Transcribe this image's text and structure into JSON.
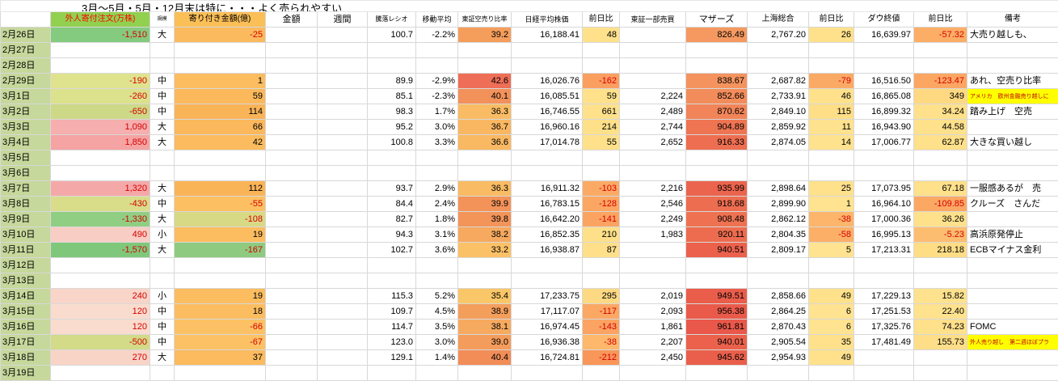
{
  "title": "3月～5月・5月・12月末は特に・・・よく売られやすい",
  "headers": [
    {
      "label": ""
    },
    {
      "label": "外人寄付注文(万株)",
      "bg": "#92d050",
      "fg": "#ff0000",
      "size": 10
    },
    {
      "label": "規模",
      "size": 6
    },
    {
      "label": "寄り付き金額(億)",
      "bg": "#fbbf58",
      "size": 10
    },
    {
      "label": "金額",
      "size": 11
    },
    {
      "label": "週間",
      "size": 11
    },
    {
      "label": "騰落レシオ",
      "size": 8
    },
    {
      "label": "移動平均",
      "size": 9
    },
    {
      "label": "東証空売り比率",
      "size": 8
    },
    {
      "label": "日経平均株価",
      "size": 9
    },
    {
      "label": "前日比",
      "size": 10
    },
    {
      "label": "東証一部売買",
      "size": 9
    },
    {
      "label": "マザーズ",
      "size": 11
    },
    {
      "label": "上海総合",
      "size": 10
    },
    {
      "label": "前日比",
      "size": 10
    },
    {
      "label": "ダウ終値",
      "size": 10
    },
    {
      "label": "前日比",
      "size": 10
    },
    {
      "label": "備考",
      "size": 10
    }
  ],
  "rows": [
    {
      "date": "2月26日",
      "cells": [
        {
          "v": "-1,510",
          "bg": "#85cb7f",
          "fg": "#d60000"
        },
        {
          "v": "大"
        },
        {
          "v": "-25",
          "bg": "#fcba5e",
          "fg": "#d60000"
        },
        {},
        {},
        {
          "v": "100.7"
        },
        {
          "v": "-2.2%"
        },
        {
          "v": "39.2",
          "bg": "#f59e5c"
        },
        {
          "v": "16,188.41"
        },
        {
          "v": "48",
          "bg": "#ffe18c"
        },
        {},
        {
          "v": "826.49",
          "bg": "#f59960"
        },
        {
          "v": "2,767.20"
        },
        {
          "v": "26",
          "bg": "#ffe18c"
        },
        {
          "v": "16,639.97"
        },
        {
          "v": "-57.32",
          "bg": "#fcae66",
          "fg": "#d60000"
        },
        {
          "v": "大売り越しも、"
        }
      ]
    },
    {
      "date": "2月27日",
      "cells": []
    },
    {
      "date": "2月28日",
      "cells": []
    },
    {
      "date": "2月29日",
      "cells": [
        {
          "v": "-190",
          "bg": "#e0e38e",
          "fg": "#d60000"
        },
        {
          "v": "中"
        },
        {
          "v": "1",
          "bg": "#fcbd60"
        },
        {},
        {},
        {
          "v": "89.9"
        },
        {
          "v": "-2.9%"
        },
        {
          "v": "42.6",
          "bg": "#ee6e57"
        },
        {
          "v": "16,026.76"
        },
        {
          "v": "-162",
          "bg": "#fa9f60",
          "fg": "#d60000"
        },
        {},
        {
          "v": "838.67",
          "bg": "#f4935e"
        },
        {
          "v": "2,687.82"
        },
        {
          "v": "-79",
          "bg": "#fbaa65",
          "fg": "#d60000"
        },
        {
          "v": "16,516.50"
        },
        {
          "v": "-123.47",
          "bg": "#fba763",
          "fg": "#d60000"
        },
        {
          "v": "あれ、空売り比率"
        }
      ]
    },
    {
      "date": "3月1日",
      "cells": [
        {
          "v": "-260",
          "bg": "#dce18c",
          "fg": "#d60000"
        },
        {
          "v": "中"
        },
        {
          "v": "59",
          "bg": "#fbb95c"
        },
        {},
        {},
        {
          "v": "85.1"
        },
        {
          "v": "-2.3%"
        },
        {
          "v": "40.1",
          "bg": "#f3915a"
        },
        {
          "v": "16,085.51"
        },
        {
          "v": "59",
          "bg": "#ffe18c"
        },
        {
          "v": "2,224"
        },
        {
          "v": "852.66",
          "bg": "#f38c5b"
        },
        {
          "v": "2,733.91"
        },
        {
          "v": "46",
          "bg": "#ffe18c"
        },
        {
          "v": "16,865.08"
        },
        {
          "v": "349",
          "bg": "#fed981"
        },
        {
          "v": "アメリカ　欧州金融売り越しに",
          "bg": "#ffff00",
          "fg": "#c00000",
          "size": 7
        }
      ]
    },
    {
      "date": "3月2日",
      "cells": [
        {
          "v": "-650",
          "bg": "#cdd987",
          "fg": "#d60000"
        },
        {
          "v": "中"
        },
        {
          "v": "114",
          "bg": "#fab458"
        },
        {},
        {},
        {
          "v": "98.3"
        },
        {
          "v": "1.7%"
        },
        {
          "v": "36.3",
          "bg": "#f9bc64"
        },
        {
          "v": "16,746.55"
        },
        {
          "v": "661",
          "bg": "#ffe18c"
        },
        {
          "v": "2,489"
        },
        {
          "v": "870.62",
          "bg": "#f18458"
        },
        {
          "v": "2,849.10"
        },
        {
          "v": "115",
          "bg": "#fede87"
        },
        {
          "v": "16,899.32"
        },
        {
          "v": "34.24",
          "bg": "#ffe18c"
        },
        {
          "v": "踏み上げ　空売"
        }
      ]
    },
    {
      "date": "3月3日",
      "cells": [
        {
          "v": "1,090",
          "bg": "#f6aeae",
          "fg": "#d60000"
        },
        {
          "v": "大"
        },
        {
          "v": "66",
          "bg": "#fbb85c"
        },
        {},
        {},
        {
          "v": "95.2"
        },
        {
          "v": "3.0%"
        },
        {
          "v": "36.7",
          "bg": "#f9b762"
        },
        {
          "v": "16,960.16"
        },
        {
          "v": "214",
          "bg": "#fee089"
        },
        {
          "v": "2,744"
        },
        {
          "v": "904.89",
          "bg": "#ee7452"
        },
        {
          "v": "2,859.92"
        },
        {
          "v": "11",
          "bg": "#ffe28e"
        },
        {
          "v": "16,943.90"
        },
        {
          "v": "44.58",
          "bg": "#ffe18c"
        },
        {}
      ]
    },
    {
      "date": "3月4日",
      "cells": [
        {
          "v": "1,850",
          "bg": "#f5a3a3",
          "fg": "#d60000"
        },
        {
          "v": "大"
        },
        {
          "v": "42",
          "bg": "#fbbb5e"
        },
        {},
        {},
        {
          "v": "100.8"
        },
        {
          "v": "3.3%"
        },
        {
          "v": "36.6",
          "bg": "#f9b862"
        },
        {
          "v": "17,014.78"
        },
        {
          "v": "55",
          "bg": "#ffe18c"
        },
        {
          "v": "2,652"
        },
        {
          "v": "916.33",
          "bg": "#ed6e50"
        },
        {
          "v": "2,874.05"
        },
        {
          "v": "14",
          "bg": "#ffe28e"
        },
        {
          "v": "17,006.77"
        },
        {
          "v": "62.87",
          "bg": "#ffe08b"
        },
        {
          "v": "大きな買い越し"
        }
      ]
    },
    {
      "date": "3月5日",
      "cells": []
    },
    {
      "date": "3月6日",
      "cells": []
    },
    {
      "date": "3月7日",
      "cells": [
        {
          "v": "1,320",
          "bg": "#f5a8a8",
          "fg": "#d60000"
        },
        {
          "v": "大"
        },
        {
          "v": "112",
          "bg": "#fab458"
        },
        {},
        {},
        {
          "v": "93.7"
        },
        {
          "v": "2.9%"
        },
        {
          "v": "36.3",
          "bg": "#f9bc64"
        },
        {
          "v": "16,911.32"
        },
        {
          "v": "-103",
          "bg": "#fbaa65",
          "fg": "#d60000"
        },
        {
          "v": "2,216"
        },
        {
          "v": "935.99",
          "bg": "#eb644d"
        },
        {
          "v": "2,898.64"
        },
        {
          "v": "25",
          "bg": "#ffe18c"
        },
        {
          "v": "17,073.95"
        },
        {
          "v": "67.18",
          "bg": "#ffe08b"
        },
        {
          "v": "一服感あるが　売"
        }
      ]
    },
    {
      "date": "3月8日",
      "cells": [
        {
          "v": "-430",
          "bg": "#d9dd8a",
          "fg": "#d60000"
        },
        {
          "v": "中"
        },
        {
          "v": "-55",
          "bg": "#fcc062",
          "fg": "#d60000"
        },
        {},
        {},
        {
          "v": "84.4"
        },
        {
          "v": "2.4%"
        },
        {
          "v": "39.9",
          "bg": "#f39359"
        },
        {
          "v": "16,783.15"
        },
        {
          "v": "-128",
          "bg": "#fba662",
          "fg": "#d60000"
        },
        {
          "v": "2,546"
        },
        {
          "v": "918.68",
          "bg": "#ed6d50"
        },
        {
          "v": "2,899.90"
        },
        {
          "v": "1",
          "bg": "#ffe390"
        },
        {
          "v": "16,964.10"
        },
        {
          "v": "-109.85",
          "bg": "#fba864",
          "fg": "#d60000"
        },
        {
          "v": "クルーズ　さんだ"
        }
      ]
    },
    {
      "date": "3月9日",
      "cells": [
        {
          "v": "-1,330",
          "bg": "#90cf83",
          "fg": "#d60000"
        },
        {
          "v": "大"
        },
        {
          "v": "-108",
          "bg": "#d8d984",
          "fg": "#d60000"
        },
        {},
        {},
        {
          "v": "82.7"
        },
        {
          "v": "1.8%"
        },
        {
          "v": "39.8",
          "bg": "#f39459"
        },
        {
          "v": "16,642.20"
        },
        {
          "v": "-141",
          "bg": "#fba462",
          "fg": "#d60000"
        },
        {
          "v": "2,249"
        },
        {
          "v": "908.48",
          "bg": "#ee7251"
        },
        {
          "v": "2,862.12"
        },
        {
          "v": "-38",
          "bg": "#fcb56a",
          "fg": "#d60000"
        },
        {
          "v": "17,000.36"
        },
        {
          "v": "36.26",
          "bg": "#ffe18c"
        },
        {}
      ]
    },
    {
      "date": "3月10日",
      "cells": [
        {
          "v": "490",
          "bg": "#f8cdc4",
          "fg": "#d60000"
        },
        {
          "v": "小"
        },
        {
          "v": "19",
          "bg": "#fcbd60"
        },
        {},
        {},
        {
          "v": "94.3"
        },
        {
          "v": "3.1%"
        },
        {
          "v": "38.2",
          "bg": "#f6a95f"
        },
        {
          "v": "16,852.35"
        },
        {
          "v": "210",
          "bg": "#fee089"
        },
        {
          "v": "1,983"
        },
        {
          "v": "920.11",
          "bg": "#ed6c4f"
        },
        {
          "v": "2,804.35"
        },
        {
          "v": "-58",
          "bg": "#fcaf67",
          "fg": "#d60000"
        },
        {
          "v": "16,995.13"
        },
        {
          "v": "-5.23",
          "bg": "#fdbd70",
          "fg": "#d60000"
        },
        {
          "v": "高浜原発停止"
        }
      ]
    },
    {
      "date": "3月11日",
      "cells": [
        {
          "v": "-1,570",
          "bg": "#7fc87b",
          "fg": "#d60000"
        },
        {
          "v": "大"
        },
        {
          "v": "-167",
          "bg": "#8ecb80",
          "fg": "#d60000"
        },
        {},
        {},
        {
          "v": "102.7"
        },
        {
          "v": "3.6%"
        },
        {
          "v": "33.2",
          "bg": "#fbc166"
        },
        {
          "v": "16,938.87"
        },
        {
          "v": "87",
          "bg": "#ffdf8a"
        },
        {},
        {
          "v": "940.51",
          "bg": "#eb614c"
        },
        {
          "v": "2,809.17"
        },
        {
          "v": "5",
          "bg": "#ffe390"
        },
        {
          "v": "17,213.31"
        },
        {
          "v": "218.18",
          "bg": "#fedd85"
        },
        {
          "v": "ECBマイナス金利"
        }
      ]
    },
    {
      "date": "3月12日",
      "cells": []
    },
    {
      "date": "3月13日",
      "cells": []
    },
    {
      "date": "3月14日",
      "cells": [
        {
          "v": "240",
          "bg": "#f8d5c8",
          "fg": "#d60000"
        },
        {
          "v": "小"
        },
        {
          "v": "19",
          "bg": "#fcbd60"
        },
        {},
        {},
        {
          "v": "115.3"
        },
        {
          "v": "5.2%"
        },
        {
          "v": "35.4",
          "bg": "#fac768"
        },
        {
          "v": "17,233.75"
        },
        {
          "v": "295",
          "bg": "#fdd983"
        },
        {
          "v": "2,019"
        },
        {
          "v": "949.51",
          "bg": "#ea5d4b"
        },
        {
          "v": "2,858.66"
        },
        {
          "v": "49",
          "bg": "#ffe18c"
        },
        {
          "v": "17,229.13"
        },
        {
          "v": "15.82",
          "bg": "#ffe28e"
        },
        {}
      ]
    },
    {
      "date": "3月15日",
      "cells": [
        {
          "v": "120",
          "bg": "#f9dcce",
          "fg": "#d60000"
        },
        {
          "v": "中"
        },
        {
          "v": "18",
          "bg": "#fcbd60"
        },
        {},
        {},
        {
          "v": "109.7"
        },
        {
          "v": "4.5%"
        },
        {
          "v": "38.9",
          "bg": "#f49e5c"
        },
        {
          "v": "17,117.07"
        },
        {
          "v": "-117",
          "bg": "#fba864",
          "fg": "#d60000"
        },
        {
          "v": "2,093"
        },
        {
          "v": "956.38",
          "bg": "#ea5a4a"
        },
        {
          "v": "2,864.25"
        },
        {
          "v": "6",
          "bg": "#ffe390"
        },
        {
          "v": "17,251.53"
        },
        {
          "v": "22.40",
          "bg": "#ffe28e"
        },
        {}
      ]
    },
    {
      "date": "3月16日",
      "cells": [
        {
          "v": "120",
          "bg": "#f9dcce",
          "fg": "#d60000"
        },
        {
          "v": "中"
        },
        {
          "v": "-66",
          "bg": "#fcc164",
          "fg": "#d60000"
        },
        {},
        {},
        {
          "v": "114.7"
        },
        {
          "v": "3.5%"
        },
        {
          "v": "38.1",
          "bg": "#f6aa60"
        },
        {
          "v": "16,974.45"
        },
        {
          "v": "-143",
          "bg": "#fba362",
          "fg": "#d60000"
        },
        {
          "v": "1,861"
        },
        {
          "v": "961.81",
          "bg": "#e9584a"
        },
        {
          "v": "2,870.43"
        },
        {
          "v": "6",
          "bg": "#ffe390"
        },
        {
          "v": "17,325.76"
        },
        {
          "v": "74.23",
          "bg": "#ffe08b"
        },
        {
          "v": "FOMC"
        }
      ]
    },
    {
      "date": "3月17日",
      "cells": [
        {
          "v": "-500",
          "bg": "#d3da88",
          "fg": "#d60000"
        },
        {
          "v": "中"
        },
        {
          "v": "-67",
          "bg": "#fcc164",
          "fg": "#d60000"
        },
        {},
        {},
        {
          "v": "123.0"
        },
        {
          "v": "3.0%"
        },
        {
          "v": "39.0",
          "bg": "#f49c5b"
        },
        {
          "v": "16,936.38"
        },
        {
          "v": "-38",
          "bg": "#fdb86c",
          "fg": "#d60000"
        },
        {
          "v": "2,207"
        },
        {
          "v": "940.01",
          "bg": "#eb614c"
        },
        {
          "v": "2,905.54"
        },
        {
          "v": "35",
          "bg": "#ffe18c"
        },
        {
          "v": "17,481.49"
        },
        {
          "v": "155.73",
          "bg": "#fede88"
        },
        {
          "v": "外人売り越し　第二週ほぼプラ",
          "bg": "#ffff00",
          "fg": "#c00000",
          "size": 7
        }
      ]
    },
    {
      "date": "3月18日",
      "cells": [
        {
          "v": "270",
          "bg": "#f8d4c7",
          "fg": "#d60000"
        },
        {
          "v": "大"
        },
        {
          "v": "37",
          "bg": "#fbbb5e"
        },
        {},
        {},
        {
          "v": "129.1"
        },
        {
          "v": "1.4%"
        },
        {
          "v": "40.4",
          "bg": "#f28d58"
        },
        {
          "v": "16,724.81"
        },
        {
          "v": "-212",
          "bg": "#f99659",
          "fg": "#d60000"
        },
        {
          "v": "2,450"
        },
        {
          "v": "945.62",
          "bg": "#ea5f4b"
        },
        {
          "v": "2,954.93"
        },
        {
          "v": "49",
          "bg": "#ffe18c"
        },
        {},
        {},
        {}
      ]
    },
    {
      "date": "3月19日",
      "cells": []
    }
  ]
}
